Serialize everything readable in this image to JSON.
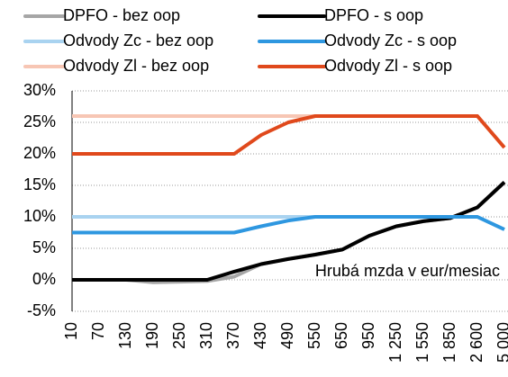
{
  "chart_data": {
    "type": "line",
    "annotation": "Hrubá mzda v eur/mesiac",
    "categories": [
      "10",
      "70",
      "130",
      "190",
      "250",
      "310",
      "370",
      "430",
      "490",
      "550",
      "650",
      "950",
      "1 250",
      "1 550",
      "1 850",
      "2 600",
      "5 000"
    ],
    "series": [
      {
        "name": "DPFO - bez oop",
        "color": "#a6a6a6",
        "values": [
          0,
          0,
          0,
          -0.4,
          -0.3,
          -0.2,
          0.5,
          2.5,
          3.3,
          4,
          4.8,
          7,
          8.5,
          9.3,
          9.8,
          11.5,
          15.5
        ]
      },
      {
        "name": "DPFO - s oop",
        "color": "#000000",
        "values": [
          0,
          0,
          0,
          0,
          0,
          0,
          1.3,
          2.5,
          3.3,
          4,
          4.8,
          7,
          8.5,
          9.3,
          9.8,
          11.5,
          15.5
        ]
      },
      {
        "name": "Odvody Zc - bez oop",
        "color": "#a9d3f0",
        "values": [
          10,
          10,
          10,
          10,
          10,
          10,
          10,
          10,
          10,
          10,
          10,
          10,
          10,
          10,
          10,
          10,
          8
        ]
      },
      {
        "name": "Odvody Zc - s oop",
        "color": "#2e97e0",
        "values": [
          7.5,
          7.5,
          7.5,
          7.5,
          7.5,
          7.5,
          7.5,
          8.5,
          9.4,
          10,
          10,
          10,
          10,
          10,
          10,
          10,
          8
        ]
      },
      {
        "name": "Odvody Zl - bez oop",
        "color": "#f7c6b4",
        "values": [
          26,
          26,
          26,
          26,
          26,
          26,
          26,
          26,
          26,
          26,
          26,
          26,
          26,
          26,
          26,
          26,
          21
        ]
      },
      {
        "name": "Odvody Zl - s oop",
        "color": "#e0491c",
        "values": [
          20,
          20,
          20,
          20,
          20,
          20,
          20,
          23,
          25,
          26,
          26,
          26,
          26,
          26,
          26,
          26,
          21
        ]
      }
    ],
    "ylim": [
      -5,
      30
    ],
    "yticks": [
      {
        "value": -5,
        "label": "-5%"
      },
      {
        "value": 0,
        "label": "0%"
      },
      {
        "value": 5,
        "label": "5%"
      },
      {
        "value": 10,
        "label": "10%"
      },
      {
        "value": 15,
        "label": "15%"
      },
      {
        "value": 20,
        "label": "20%"
      },
      {
        "value": 25,
        "label": "25%"
      },
      {
        "value": 30,
        "label": "30%"
      }
    ],
    "grid": true
  }
}
